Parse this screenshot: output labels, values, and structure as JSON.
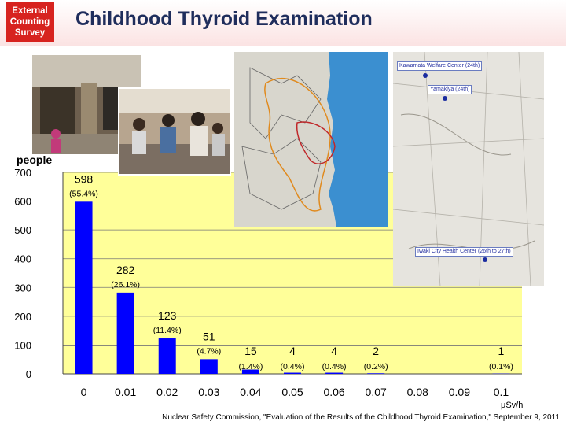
{
  "header": {
    "badge_lines": [
      "External",
      "Counting",
      "Survey"
    ],
    "title": "Childhood Thyroid Examination"
  },
  "map_labels": {
    "kawamata": "Kawamata Welfare Center (24th)",
    "yamakiya": "Yamakiya (24th)",
    "iwaki": "Iwaki City Health Center (26th to 27th)"
  },
  "colors": {
    "plot_background": "#ffff99",
    "bar": "#0000ff",
    "badge": "#d7231f",
    "title": "#1f2d5c"
  },
  "chart_data": {
    "type": "bar",
    "categories": [
      "0",
      "0.01",
      "0.02",
      "0.03",
      "0.04",
      "0.05",
      "0.06",
      "0.07",
      "0.08",
      "0.09",
      "0.1"
    ],
    "values": [
      598,
      282,
      123,
      51,
      15,
      4,
      4,
      2,
      null,
      null,
      1
    ],
    "value_labels": [
      "598",
      "282",
      "123",
      "51",
      "15",
      "4",
      "4",
      "2",
      "",
      "",
      "1"
    ],
    "percent_labels": [
      "(55.4%)",
      "(26.1%)",
      "(11.4%)",
      "(4.7%)",
      "(1.4%)",
      "(0.4%)",
      "(0.4%)",
      "(0.2%)",
      "",
      "",
      "(0.1%)"
    ],
    "ylabel": "people",
    "xlabel_unit": "μSv/h",
    "ylim": [
      0,
      700
    ],
    "yticks": [
      0,
      100,
      200,
      300,
      400,
      500,
      600,
      700
    ],
    "grid": true
  },
  "footer": {
    "source": "Nuclear Safety Commission, \"Evaluation of the Results of the Childhood Thyroid Examination,\" September 9, 2011"
  }
}
